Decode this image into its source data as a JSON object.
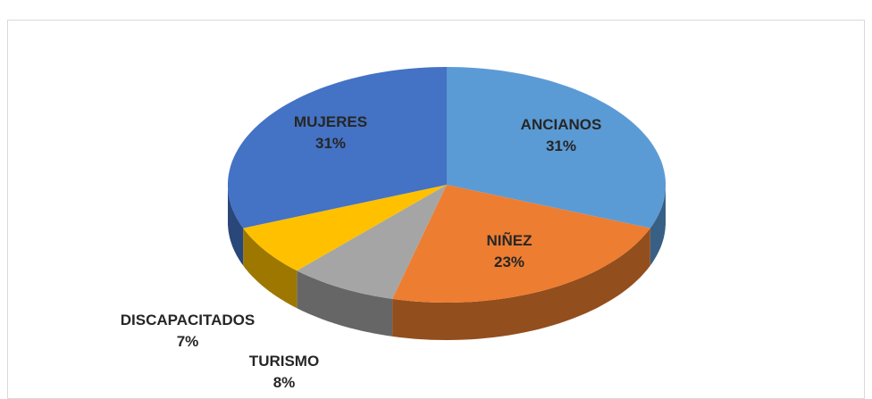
{
  "chart_data": {
    "type": "pie3d",
    "categories": [
      "ANCIANOS",
      "NIÑEZ",
      "TURISMO",
      "DISCAPACITADOS",
      "MUJERES"
    ],
    "values": [
      31,
      23,
      8,
      7,
      31
    ],
    "value_labels": [
      "31%",
      "23%",
      "8%",
      "7%",
      "31%"
    ],
    "colors": [
      "#5b9bd5",
      "#ed7d31",
      "#a5a5a5",
      "#ffc000",
      "#4472c4"
    ]
  }
}
